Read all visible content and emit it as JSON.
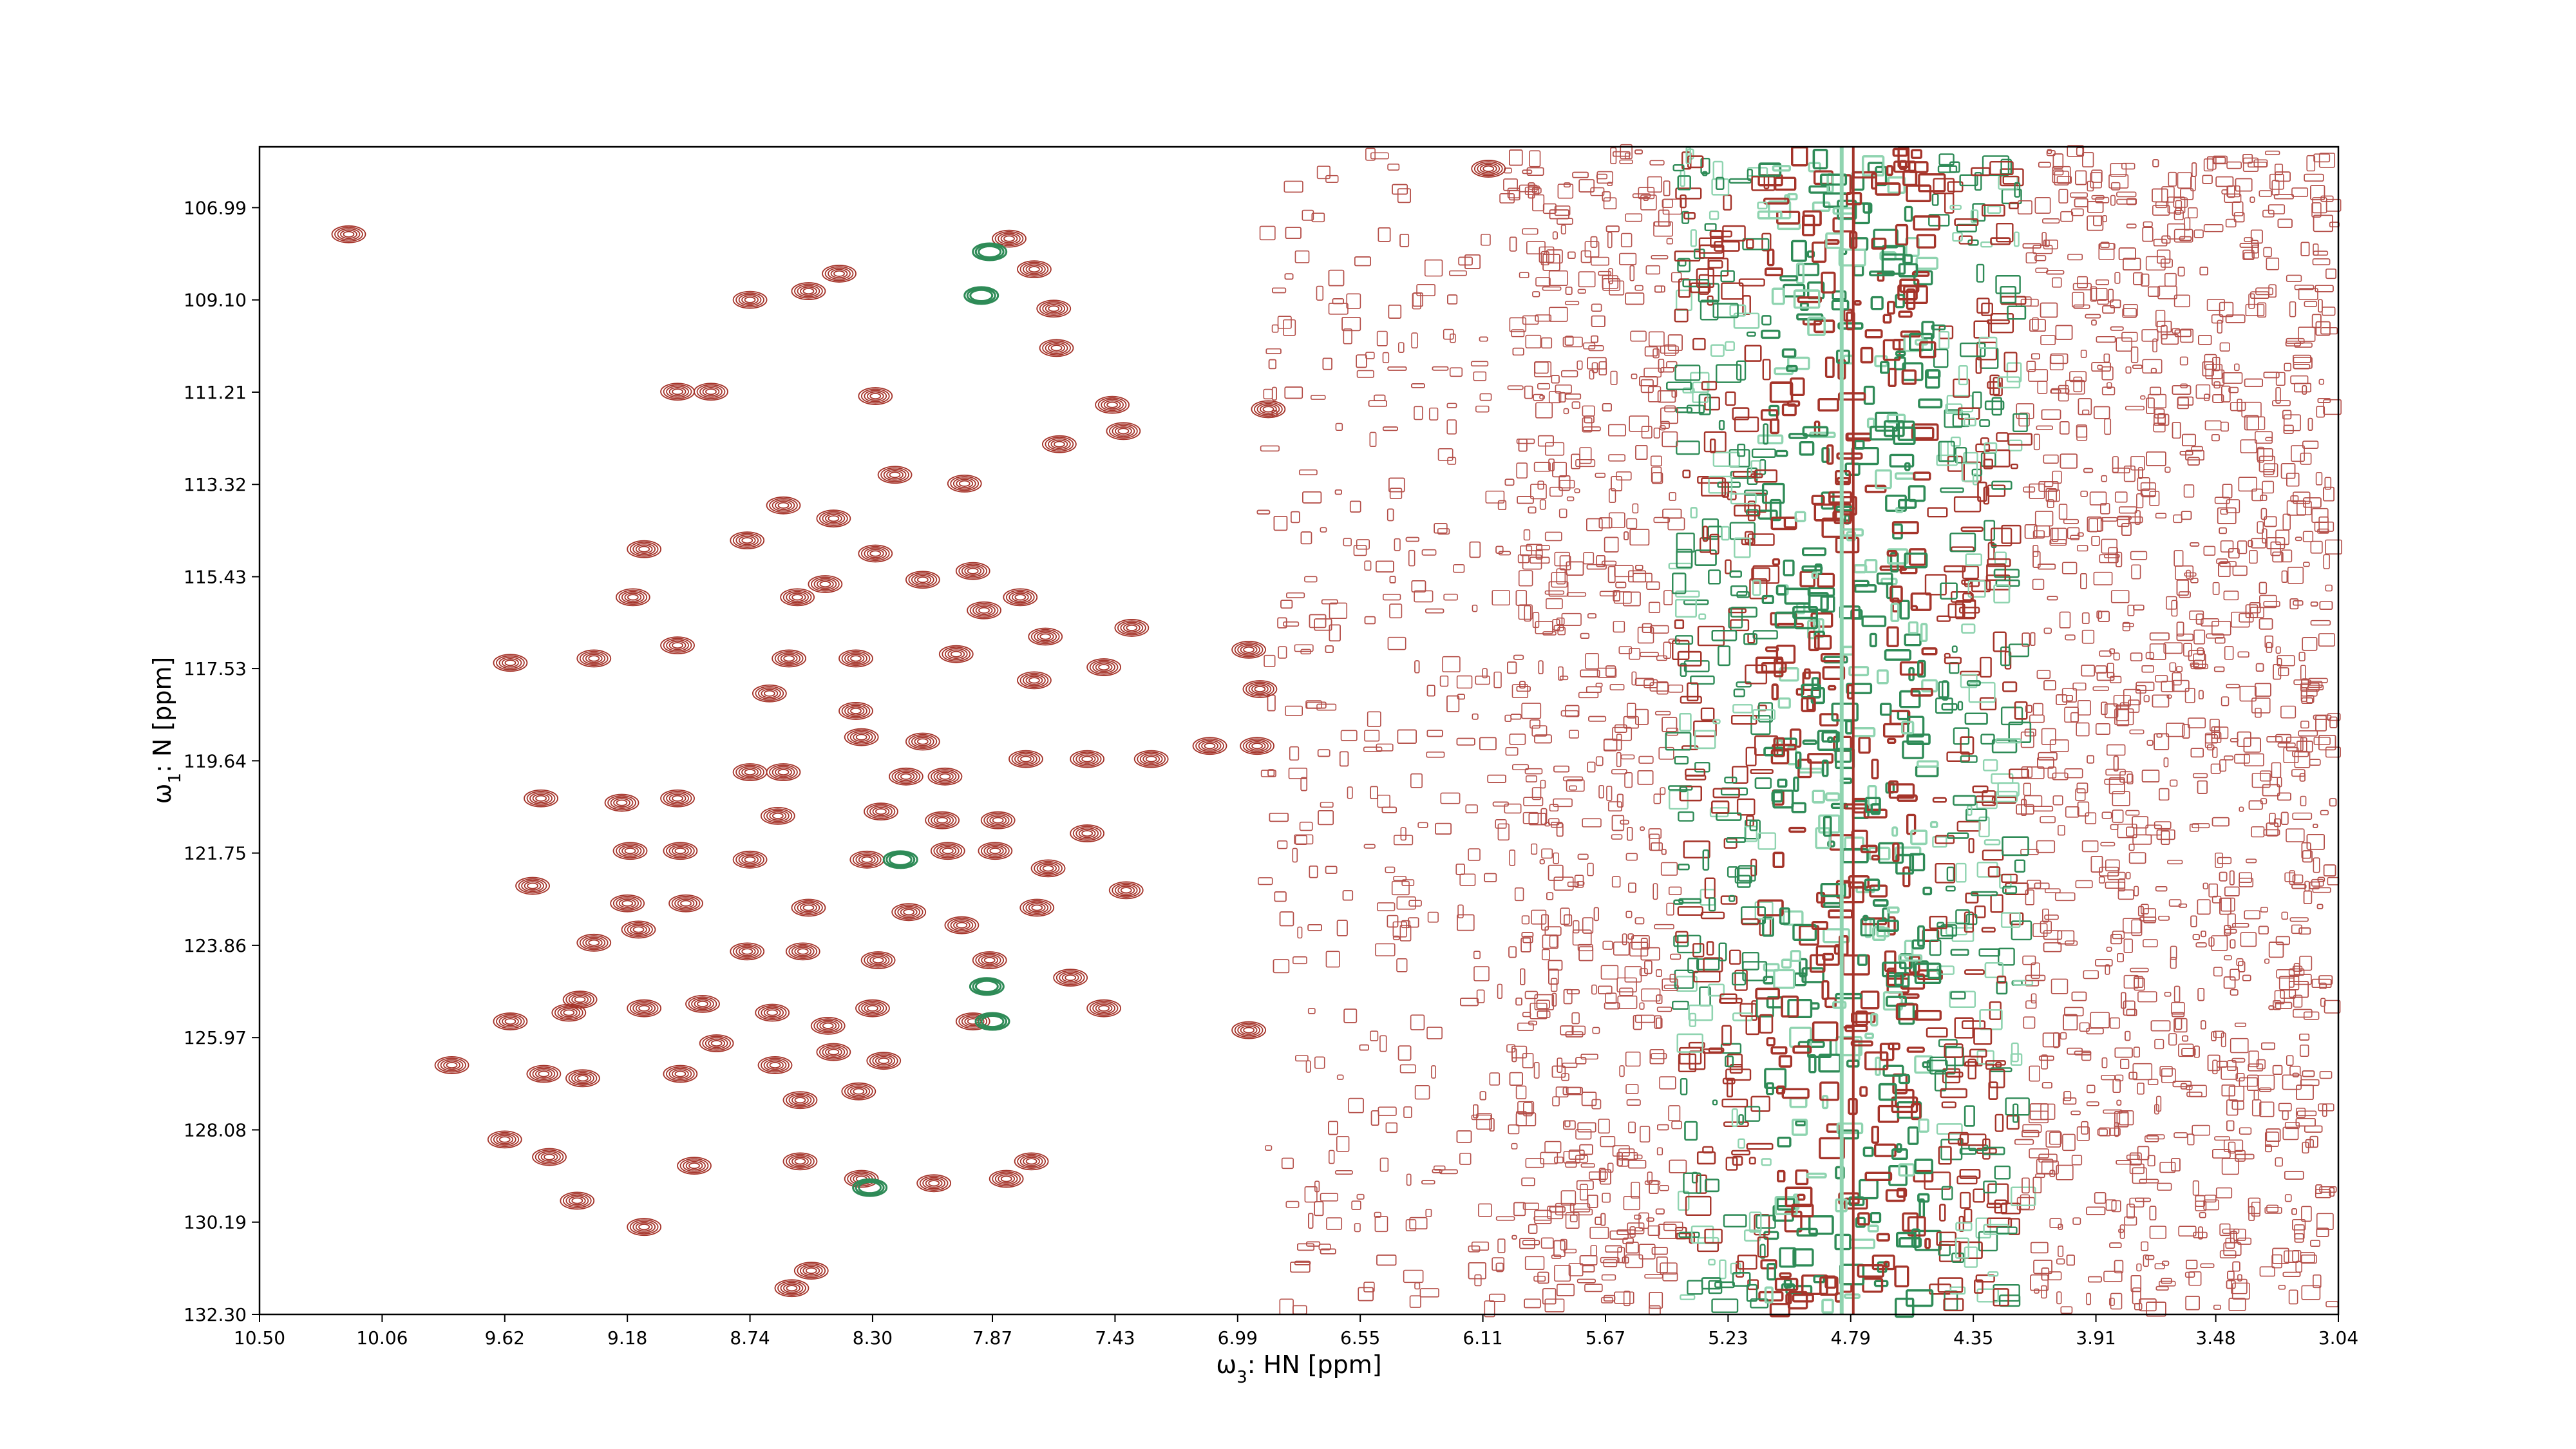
{
  "chart_data": {
    "type": "contour",
    "xlabel_symbol": "ω",
    "xlabel_subscript": "3",
    "xlabel_text": ": HN [ppm]",
    "ylabel_symbol": "ω",
    "ylabel_subscript": "1",
    "ylabel_text": ": N [ppm]",
    "xlim": [
      10.5,
      3.04
    ],
    "ylim": [
      105.6,
      132.3
    ],
    "x_ticks": [
      "10.50",
      "10.06",
      "9.62",
      "9.18",
      "8.74",
      "8.30",
      "7.87",
      "7.43",
      "6.99",
      "6.55",
      "6.11",
      "5.67",
      "5.23",
      "4.79",
      "4.35",
      "3.91",
      "3.48",
      "3.04"
    ],
    "y_ticks": [
      "106.99",
      "109.10",
      "111.21",
      "113.32",
      "115.43",
      "117.53",
      "119.64",
      "121.75",
      "123.86",
      "125.97",
      "128.08",
      "130.19",
      "132.30"
    ],
    "colors": {
      "positive": "#a5342a",
      "negative": "#2e8b57",
      "negative_light": "#8fd4b0",
      "noise": "#b5504a"
    },
    "water_ppm": 4.79,
    "series": [
      {
        "name": "",
        "color": "#a5342a",
        "sign": "positive",
        "peaks": [
          [
            10.18,
            107.6
          ],
          [
            9.0,
            111.2
          ],
          [
            8.88,
            111.2
          ],
          [
            8.74,
            109.1
          ],
          [
            8.29,
            111.3
          ],
          [
            7.81,
            107.7
          ],
          [
            7.72,
            108.4
          ],
          [
            7.65,
            109.3
          ],
          [
            8.42,
            108.5
          ],
          [
            8.53,
            108.9
          ],
          [
            7.64,
            110.2
          ],
          [
            7.44,
            111.5
          ],
          [
            7.4,
            112.1
          ],
          [
            7.63,
            112.4
          ],
          [
            6.88,
            111.6
          ],
          [
            8.22,
            113.1
          ],
          [
            7.97,
            113.3
          ],
          [
            8.62,
            113.8
          ],
          [
            8.44,
            114.1
          ],
          [
            9.12,
            114.8
          ],
          [
            8.75,
            114.6
          ],
          [
            8.29,
            114.9
          ],
          [
            7.94,
            115.3
          ],
          [
            8.12,
            115.5
          ],
          [
            8.47,
            115.6
          ],
          [
            9.16,
            115.9
          ],
          [
            8.57,
            115.9
          ],
          [
            7.77,
            115.9
          ],
          [
            7.9,
            116.2
          ],
          [
            7.37,
            116.6
          ],
          [
            7.68,
            116.8
          ],
          [
            6.95,
            117.1
          ],
          [
            9.6,
            117.4
          ],
          [
            9.3,
            117.3
          ],
          [
            9.0,
            117.0
          ],
          [
            8.6,
            117.3
          ],
          [
            8.36,
            117.3
          ],
          [
            8.0,
            117.2
          ],
          [
            7.72,
            117.8
          ],
          [
            7.47,
            117.5
          ],
          [
            6.91,
            118.0
          ],
          [
            8.67,
            118.1
          ],
          [
            8.36,
            118.5
          ],
          [
            8.34,
            119.1
          ],
          [
            8.12,
            119.2
          ],
          [
            7.75,
            119.6
          ],
          [
            7.53,
            119.6
          ],
          [
            7.3,
            119.6
          ],
          [
            7.09,
            119.3
          ],
          [
            6.92,
            119.3
          ],
          [
            8.62,
            119.9
          ],
          [
            8.74,
            119.9
          ],
          [
            8.04,
            120.0
          ],
          [
            8.18,
            120.0
          ],
          [
            9.49,
            120.5
          ],
          [
            9.2,
            120.6
          ],
          [
            9.0,
            120.5
          ],
          [
            8.64,
            120.9
          ],
          [
            8.27,
            120.8
          ],
          [
            8.05,
            121.0
          ],
          [
            7.85,
            121.0
          ],
          [
            7.53,
            121.3
          ],
          [
            9.17,
            121.7
          ],
          [
            8.99,
            121.7
          ],
          [
            8.74,
            121.9
          ],
          [
            8.32,
            121.9
          ],
          [
            8.03,
            121.7
          ],
          [
            7.86,
            121.7
          ],
          [
            7.67,
            122.1
          ],
          [
            9.52,
            122.5
          ],
          [
            9.18,
            122.9
          ],
          [
            8.97,
            122.9
          ],
          [
            8.53,
            123.0
          ],
          [
            8.17,
            123.1
          ],
          [
            7.71,
            123.0
          ],
          [
            7.39,
            122.6
          ],
          [
            7.98,
            123.4
          ],
          [
            9.3,
            123.8
          ],
          [
            9.14,
            123.5
          ],
          [
            8.75,
            124.0
          ],
          [
            8.55,
            124.0
          ],
          [
            8.28,
            124.2
          ],
          [
            7.88,
            124.2
          ],
          [
            7.59,
            124.6
          ],
          [
            9.35,
            125.1
          ],
          [
            9.12,
            125.3
          ],
          [
            8.91,
            125.2
          ],
          [
            8.66,
            125.4
          ],
          [
            8.46,
            125.7
          ],
          [
            8.3,
            125.3
          ],
          [
            7.94,
            125.6
          ],
          [
            7.47,
            125.3
          ],
          [
            6.95,
            125.8
          ],
          [
            9.6,
            125.6
          ],
          [
            9.39,
            125.4
          ],
          [
            8.86,
            126.1
          ],
          [
            8.65,
            126.6
          ],
          [
            8.44,
            126.3
          ],
          [
            8.26,
            126.5
          ],
          [
            9.81,
            126.6
          ],
          [
            9.48,
            126.8
          ],
          [
            9.34,
            126.9
          ],
          [
            8.99,
            126.8
          ],
          [
            8.56,
            127.4
          ],
          [
            8.35,
            127.2
          ],
          [
            9.62,
            128.3
          ],
          [
            9.46,
            128.7
          ],
          [
            8.94,
            128.9
          ],
          [
            8.56,
            128.8
          ],
          [
            8.34,
            129.2
          ],
          [
            8.08,
            129.3
          ],
          [
            7.82,
            129.2
          ],
          [
            7.73,
            128.8
          ],
          [
            9.36,
            129.7
          ],
          [
            9.12,
            130.3
          ],
          [
            8.52,
            131.3
          ],
          [
            8.59,
            131.7
          ],
          [
            6.09,
            106.1
          ]
        ]
      },
      {
        "name": "",
        "color": "#2e8b57",
        "sign": "negative",
        "peaks": [
          [
            7.88,
            108.0
          ],
          [
            7.91,
            109.0
          ],
          [
            8.2,
            121.9
          ],
          [
            7.89,
            124.8
          ],
          [
            7.87,
            125.6
          ],
          [
            8.31,
            129.4
          ]
        ]
      }
    ]
  }
}
